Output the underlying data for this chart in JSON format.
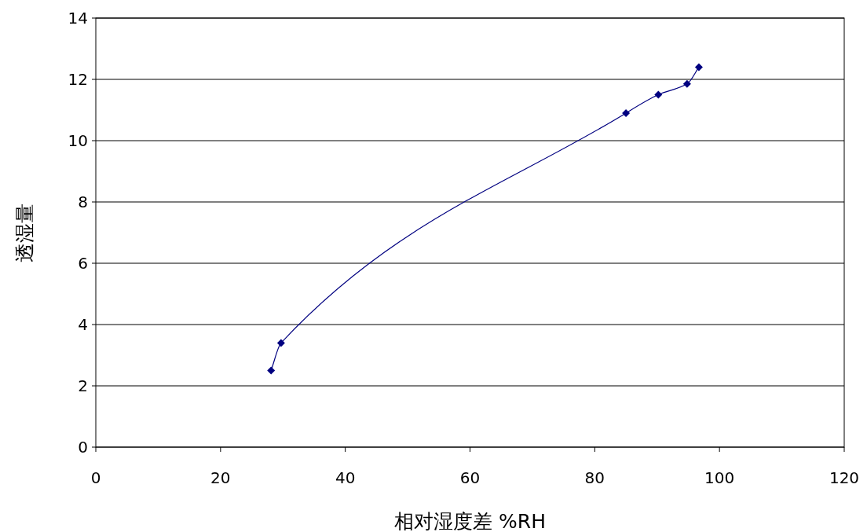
{
  "chart_data": {
    "type": "line",
    "xlabel": "相对湿度差 %RH",
    "ylabel": "透湿量",
    "x": [
      28.1,
      29.7,
      85.0,
      90.2,
      94.8,
      96.7
    ],
    "series": [
      {
        "color": "#000080",
        "values": [
          2.5,
          3.4,
          10.9,
          11.5,
          11.85,
          12.4
        ]
      }
    ],
    "xlim": [
      0,
      120
    ],
    "xticks": [
      0,
      20,
      40,
      60,
      80,
      100,
      120
    ],
    "ylim": [
      0,
      14
    ],
    "yticks": [
      0,
      2,
      4,
      6,
      8,
      10,
      12,
      14
    ],
    "grid": "y",
    "marker": "diamond",
    "line_style": "solid"
  }
}
